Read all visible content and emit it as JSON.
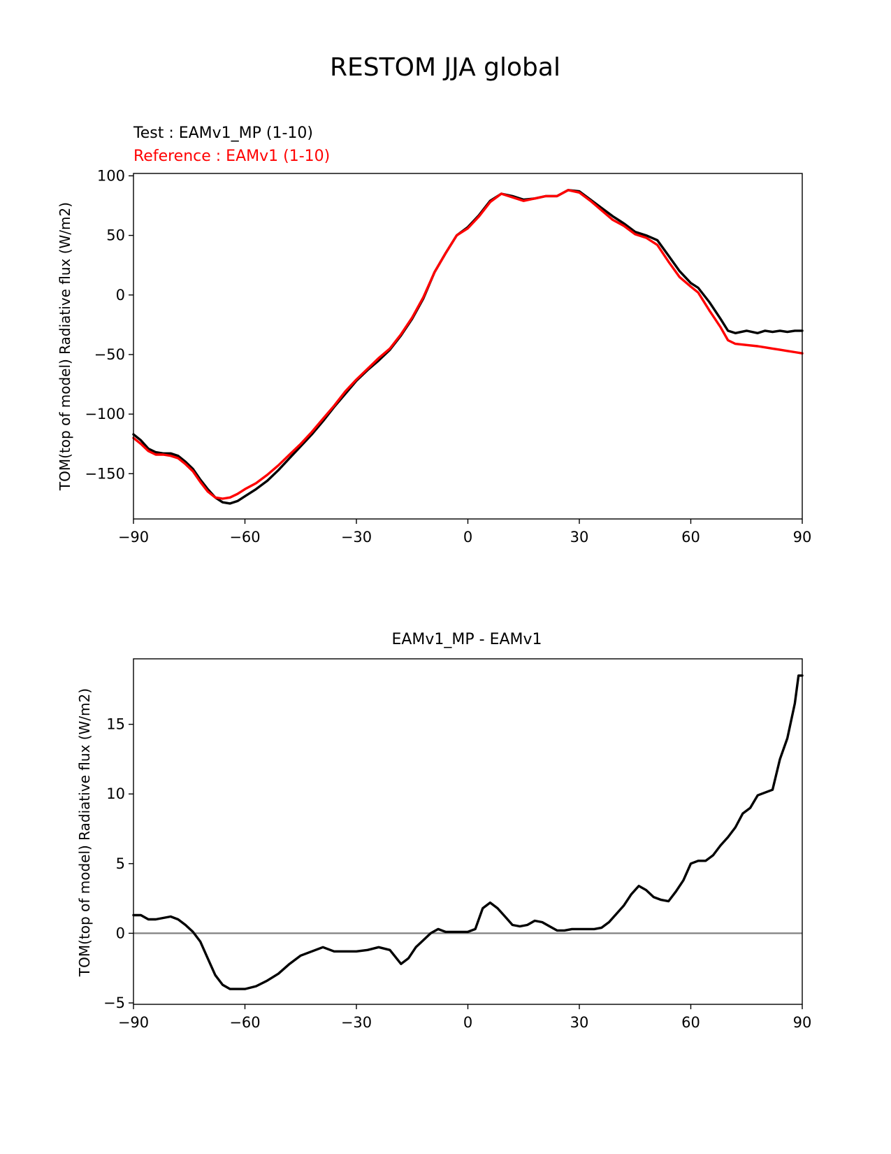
{
  "figure": {
    "title": "RESTOM JJA global"
  },
  "chart_data": [
    {
      "type": "line",
      "panel": "top",
      "test_label": "Test : EAMv1_MP (1-10)",
      "reference_label": "Reference : EAMv1 (1-10)",
      "ylabel": "TOM(top of model) Radiative flux (W/m2)",
      "xlabel": "",
      "xlim": [
        -90,
        90
      ],
      "ylim": [
        -188,
        102
      ],
      "xticks": [
        -90,
        -60,
        -30,
        0,
        30,
        60,
        90
      ],
      "xtick_labels": [
        "−90",
        "−60",
        "−30",
        "0",
        "30",
        "60",
        "90"
      ],
      "yticks": [
        -150,
        -100,
        -50,
        0,
        50,
        100
      ],
      "ytick_labels": [
        "−150",
        "−100",
        "−50",
        "0",
        "50",
        "100"
      ],
      "colors": {
        "test": "#000000",
        "reference": "#ff0000"
      },
      "series": [
        {
          "name": "Test : EAMv1_MP (1-10)",
          "x": [
            -90,
            -88,
            -86,
            -84,
            -82,
            -80,
            -78,
            -76,
            -74,
            -72,
            -70,
            -68,
            -66,
            -64,
            -62,
            -60,
            -57,
            -54,
            -51,
            -48,
            -45,
            -42,
            -39,
            -36,
            -33,
            -30,
            -27,
            -24,
            -21,
            -18,
            -15,
            -12,
            -9,
            -6,
            -3,
            0,
            3,
            6,
            9,
            12,
            15,
            18,
            21,
            24,
            27,
            30,
            33,
            36,
            39,
            42,
            45,
            48,
            51,
            54,
            57,
            60,
            62,
            65,
            68,
            70,
            72,
            75,
            78,
            80,
            82,
            84,
            86,
            88,
            90
          ],
          "values": [
            -117,
            -122,
            -129,
            -132,
            -133,
            -133,
            -135,
            -140,
            -146,
            -155,
            -163,
            -170,
            -174,
            -175,
            -173,
            -169,
            -163,
            -156,
            -147,
            -137,
            -127,
            -117,
            -106,
            -94,
            -83,
            -72,
            -63,
            -55,
            -46,
            -34,
            -20,
            -3,
            19,
            35,
            50,
            57,
            67,
            79,
            85,
            83,
            80,
            81,
            83,
            83,
            88,
            87,
            80,
            73,
            66,
            60,
            53,
            50,
            46,
            33,
            20,
            10,
            6,
            -6,
            -20,
            -30,
            -32,
            -30,
            -32,
            -30,
            -31,
            -30,
            -31,
            -30,
            -30
          ]
        },
        {
          "name": "Reference : EAMv1 (1-10)",
          "x": [
            -90,
            -88,
            -86,
            -84,
            -82,
            -80,
            -78,
            -76,
            -74,
            -72,
            -70,
            -68,
            -66,
            -64,
            -62,
            -60,
            -57,
            -54,
            -51,
            -48,
            -45,
            -42,
            -39,
            -36,
            -33,
            -30,
            -27,
            -24,
            -21,
            -18,
            -15,
            -12,
            -9,
            -6,
            -3,
            0,
            3,
            6,
            9,
            12,
            15,
            18,
            21,
            24,
            27,
            30,
            33,
            36,
            39,
            42,
            45,
            48,
            51,
            54,
            57,
            60,
            62,
            65,
            68,
            70,
            72,
            75,
            78,
            80,
            82,
            84,
            86,
            88,
            90
          ],
          "values": [
            -120,
            -125,
            -131,
            -134,
            -134,
            -135,
            -137,
            -142,
            -148,
            -157,
            -165,
            -170,
            -171,
            -170,
            -167,
            -163,
            -158,
            -151,
            -143,
            -134,
            -125,
            -115,
            -104,
            -93,
            -81,
            -71,
            -62,
            -53,
            -45,
            -33,
            -19,
            -2,
            19,
            35,
            50,
            56,
            66,
            78,
            85,
            82,
            79,
            81,
            83,
            83,
            88,
            86,
            79,
            71,
            63,
            58,
            51,
            48,
            42,
            28,
            15,
            7,
            2,
            -13,
            -27,
            -38,
            -41,
            -42,
            -43,
            -44,
            -45,
            -46,
            -47,
            -48,
            -49
          ]
        }
      ]
    },
    {
      "type": "line",
      "panel": "bottom",
      "title": "EAMv1_MP - EAMv1",
      "ylabel": "TOM(top of model) Radiative flux (W/m2)",
      "xlabel": "",
      "xlim": [
        -90,
        90
      ],
      "ylim": [
        -5.1,
        19.7
      ],
      "xticks": [
        -90,
        -60,
        -30,
        0,
        30,
        60,
        90
      ],
      "xtick_labels": [
        "−90",
        "−60",
        "−30",
        "0",
        "30",
        "60",
        "90"
      ],
      "yticks": [
        -5,
        0,
        5,
        10,
        15
      ],
      "ytick_labels": [
        "−5",
        "0",
        "5",
        "10",
        "15"
      ],
      "zero_line": 0,
      "colors": {
        "difference": "#000000",
        "zero_line": "#808080"
      },
      "series": [
        {
          "name": "EAMv1_MP - EAMv1",
          "x": [
            -90,
            -88,
            -86,
            -84,
            -82,
            -80,
            -78,
            -76,
            -74,
            -72,
            -70,
            -68,
            -66,
            -64,
            -62,
            -60,
            -57,
            -54,
            -51,
            -48,
            -45,
            -42,
            -39,
            -36,
            -33,
            -30,
            -27,
            -24,
            -21,
            -18,
            -16,
            -14,
            -12,
            -10,
            -8,
            -6,
            -4,
            -2,
            0,
            2,
            4,
            6,
            8,
            10,
            12,
            14,
            16,
            18,
            20,
            22,
            24,
            26,
            28,
            30,
            32,
            34,
            36,
            38,
            40,
            42,
            44,
            46,
            48,
            50,
            52,
            54,
            56,
            58,
            60,
            62,
            64,
            66,
            68,
            70,
            72,
            74,
            76,
            78,
            80,
            82,
            84,
            86,
            88,
            89,
            90
          ],
          "values": [
            1.3,
            1.3,
            1.0,
            1.0,
            1.1,
            1.2,
            1.0,
            0.6,
            0.1,
            -0.6,
            -1.8,
            -3.0,
            -3.7,
            -4.0,
            -4.0,
            -4.0,
            -3.8,
            -3.4,
            -2.9,
            -2.2,
            -1.6,
            -1.3,
            -1.0,
            -1.3,
            -1.3,
            -1.3,
            -1.2,
            -1.0,
            -1.2,
            -2.2,
            -1.8,
            -1.0,
            -0.5,
            0.0,
            0.3,
            0.1,
            0.1,
            0.1,
            0.1,
            0.3,
            1.8,
            2.2,
            1.8,
            1.2,
            0.6,
            0.5,
            0.6,
            0.9,
            0.8,
            0.5,
            0.2,
            0.2,
            0.3,
            0.3,
            0.3,
            0.3,
            0.4,
            0.8,
            1.4,
            2.0,
            2.8,
            3.4,
            3.1,
            2.6,
            2.4,
            2.3,
            3.0,
            3.8,
            5.0,
            5.2,
            5.2,
            5.6,
            6.3,
            6.9,
            7.6,
            8.6,
            9.0,
            9.9,
            10.1,
            10.3,
            12.5,
            14.0,
            16.5,
            18.5,
            18.5
          ]
        }
      ]
    }
  ]
}
